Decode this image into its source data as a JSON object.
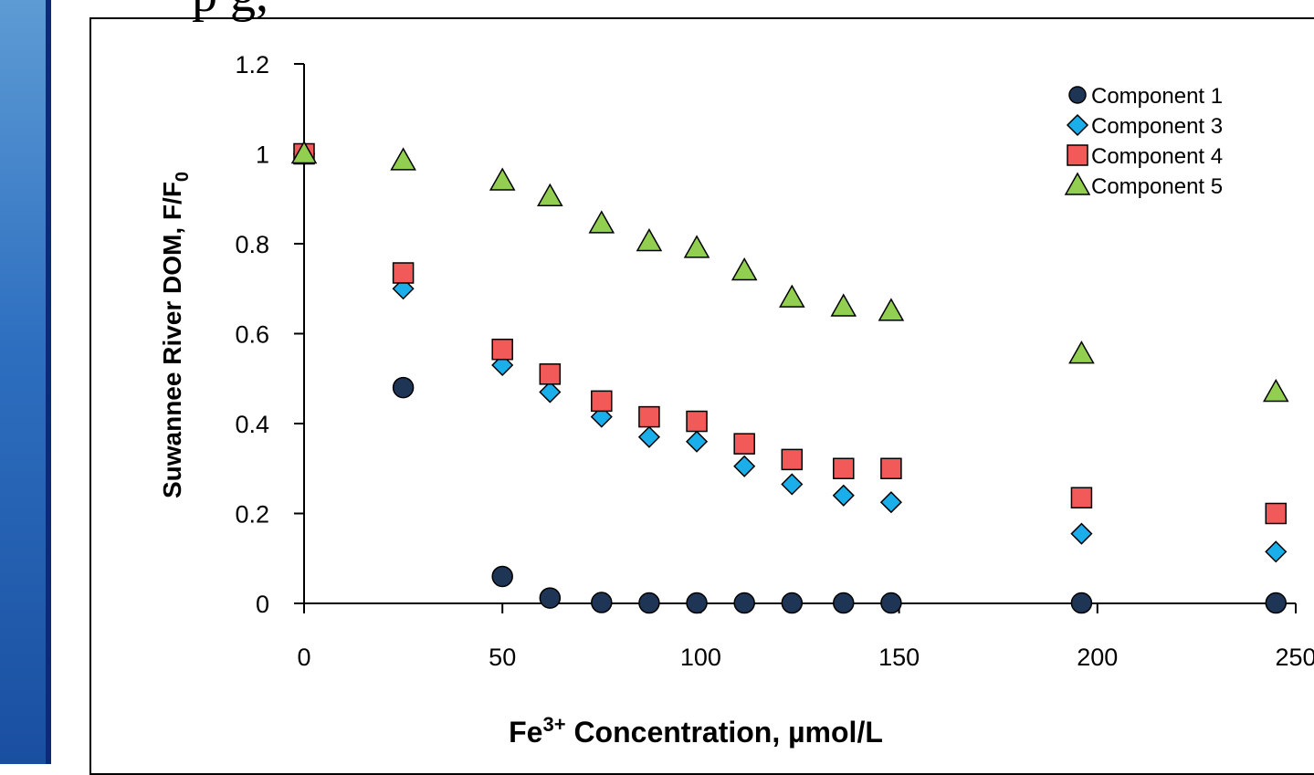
{
  "slide": {
    "title_fragment": "p                                        g,"
  },
  "chart_data": {
    "type": "scatter",
    "xlabel_main": "Fe",
    "xlabel_sup": "3+",
    "xlabel_rest": " Concentration, µmol/L",
    "ylabel_main": "Suwannee  River  DOM,  F/F",
    "ylabel_sub": "0",
    "xlim": [
      0,
      250
    ],
    "ylim": [
      0,
      1.2
    ],
    "x_ticks": [
      "0",
      "50",
      "100",
      "150",
      "200",
      "250"
    ],
    "y_ticks": [
      "0",
      "0.2",
      "0.4",
      "0.6",
      "0.8",
      "1",
      "1.2"
    ],
    "x": [
      0,
      25,
      50,
      62,
      75,
      87,
      99,
      111,
      123,
      136,
      148,
      196,
      245
    ],
    "series": [
      {
        "name": "Component 1",
        "marker": "circle",
        "color": "#1f3556",
        "values": [
          1.0,
          0.48,
          0.06,
          0.012,
          0.002,
          0.001,
          0.001,
          0.001,
          0.001,
          0.001,
          0.001,
          0.001,
          0.001
        ]
      },
      {
        "name": "Component 3",
        "marker": "diamond",
        "color": "#1aaeeb",
        "values": [
          1.0,
          0.7,
          0.53,
          0.47,
          0.415,
          0.37,
          0.36,
          0.305,
          0.265,
          0.24,
          0.225,
          0.155,
          0.115
        ]
      },
      {
        "name": "Component 4",
        "marker": "square",
        "color": "#f25a5a",
        "values": [
          1.0,
          0.735,
          0.565,
          0.51,
          0.45,
          0.415,
          0.405,
          0.355,
          0.32,
          0.3,
          0.3,
          0.235,
          0.2
        ]
      },
      {
        "name": "Component 5",
        "marker": "triangle",
        "color": "#92cf50",
        "values": [
          1.0,
          0.985,
          0.94,
          0.905,
          0.845,
          0.805,
          0.79,
          0.74,
          0.68,
          0.66,
          0.65,
          0.555,
          0.47
        ]
      }
    ],
    "legend_position": "top-right",
    "grid": false
  }
}
